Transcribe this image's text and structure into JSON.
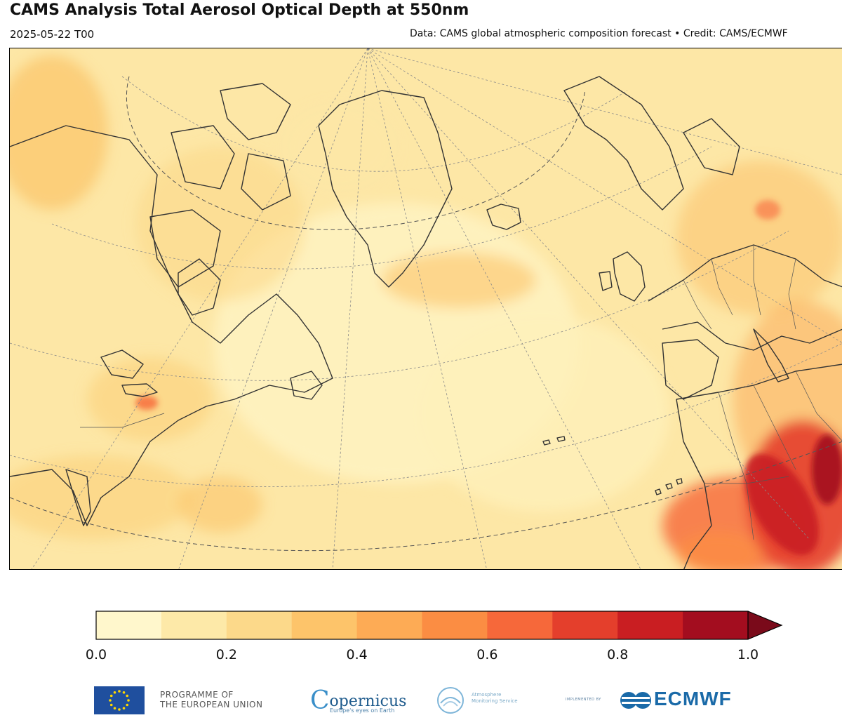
{
  "header": {
    "title": "CAMS Analysis Total Aerosol Optical Depth at 550nm",
    "datetime": "2025-05-22 T00",
    "credit": "Data: CAMS global atmospheric composition forecast • Credit: CAMS/ECMWF"
  },
  "colorbar": {
    "ticks": [
      "0.0",
      "0.2",
      "0.4",
      "0.6",
      "0.8",
      "1.0"
    ],
    "colors": [
      "#fff7cc",
      "#fde9a8",
      "#fcd98a",
      "#fdc46a",
      "#fdab55",
      "#fb8d43",
      "#f6683a",
      "#e43f2c",
      "#c91e22",
      "#a30d1f"
    ],
    "extend_color": "#7a0a1a",
    "boundaries": [
      0.0,
      0.1,
      0.2,
      0.3,
      0.4,
      0.5,
      0.6,
      0.7,
      0.8,
      0.9,
      1.0
    ],
    "extend": "max"
  },
  "map": {
    "background": "#fde5a0",
    "land_outline": "#333333",
    "graticule": "#888888"
  },
  "logos": {
    "eu_line1": "PROGRAMME OF",
    "eu_line2": "THE EUROPEAN UNION",
    "copernicus": "opernicus",
    "copernicus_sub": "Europe's eyes on Earth",
    "cams_line1": "Atmosphere",
    "cams_line2": "Monitoring Service",
    "implemented": "IMPLEMENTED BY",
    "ecmwf": "ECMWF"
  }
}
